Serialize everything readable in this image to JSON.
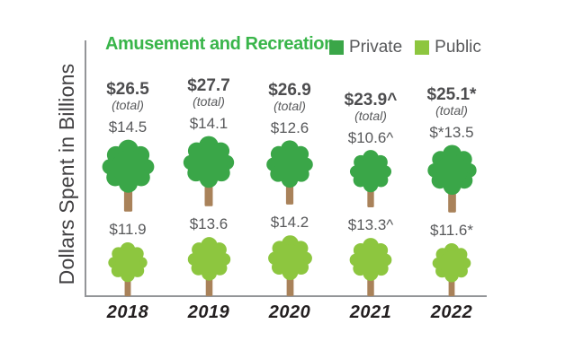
{
  "chart_data": {
    "type": "bar",
    "subtype": "pictograph-trees",
    "title": "Amusement and Recreation",
    "ylabel": "Dollars Spent in Billions",
    "xlabel": "",
    "grid": false,
    "legend_position": "top-right",
    "legend": [
      {
        "label": "Private",
        "color": "#3aa648"
      },
      {
        "label": "Public",
        "color": "#8dc63f"
      }
    ],
    "categories": [
      "2018",
      "2019",
      "2020",
      "2021",
      "2022"
    ],
    "series": [
      {
        "name": "Private",
        "values": [
          14.5,
          14.1,
          12.6,
          10.6,
          13.5
        ],
        "labels": [
          "$14.5",
          "$14.1",
          "$12.6",
          "$10.6^",
          "$*13.5"
        ]
      },
      {
        "name": "Public",
        "values": [
          11.9,
          13.6,
          14.2,
          13.3,
          11.6
        ],
        "labels": [
          "$11.9",
          "$13.6",
          "$14.2",
          "$13.3^",
          "$11.6*"
        ]
      }
    ],
    "totals": {
      "values": [
        26.5,
        27.7,
        26.9,
        23.9,
        25.1
      ],
      "labels": [
        "$26.5",
        "$27.7",
        "$26.9",
        "$23.9^",
        "$25.1*"
      ],
      "sublabel": "(total)"
    },
    "units": "billions of dollars"
  },
  "colors": {
    "private_green": "#3aa648",
    "public_green": "#8dc63f",
    "trunk_brown": "#a9825a",
    "title_green": "#39b54a",
    "value_gray": "#58595b",
    "axis_gray": "#939598",
    "year_black": "#231f20"
  }
}
